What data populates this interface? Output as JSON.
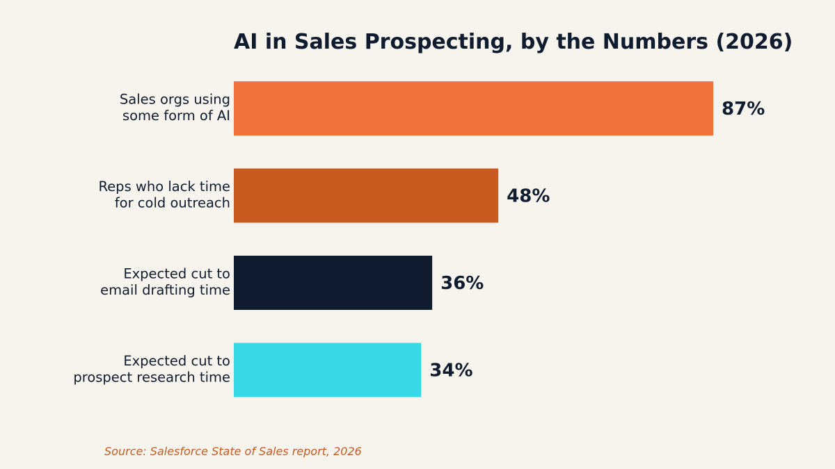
{
  "chart_data": {
    "type": "bar",
    "orientation": "horizontal",
    "title": "AI in Sales Prospecting, by the Numbers (2026)",
    "categories": [
      [
        "Sales orgs using",
        "some form of AI"
      ],
      [
        "Reps who lack time",
        "for cold outreach"
      ],
      [
        "Expected cut to",
        "email drafting time"
      ],
      [
        "Expected cut to",
        "prospect research time"
      ]
    ],
    "values": [
      87,
      48,
      36,
      34
    ],
    "value_labels": [
      "87%",
      "48%",
      "36%",
      "34%"
    ],
    "colors": [
      "#f2723c",
      "#c95a20",
      "#0f1b2e",
      "#38d8e6"
    ],
    "xlim": [
      0,
      100
    ],
    "grid": false,
    "legend": "none",
    "source": "Source: Salesforce State of Sales report, 2026"
  }
}
